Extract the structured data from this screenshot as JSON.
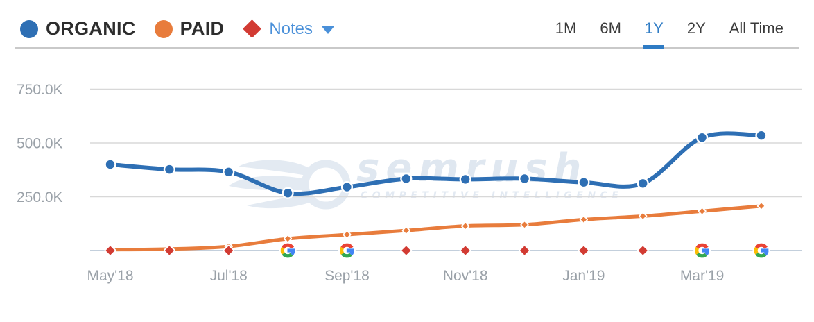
{
  "legend": {
    "organic_label": "ORGANIC",
    "paid_label": "PAID",
    "notes_label": "Notes",
    "organic_color": "#2e6fb4",
    "paid_color": "#e87c3c",
    "notes_color": "#d23b33",
    "notes_text_color": "#4a90d9"
  },
  "time_range_tabs": {
    "active_color": "#2e7bc4",
    "tabs": [
      {
        "label": "1M",
        "active": false
      },
      {
        "label": "6M",
        "active": false
      },
      {
        "label": "1Y",
        "active": true
      },
      {
        "label": "2Y",
        "active": false
      },
      {
        "label": "All Time",
        "active": false
      }
    ]
  },
  "watermark": {
    "title": "semrush",
    "subtitle": "COMPETITIVE INTELLIGENCE"
  },
  "chart_data": {
    "type": "line",
    "x": [
      "May'18",
      "Jun'18",
      "Jul'18",
      "Aug'18",
      "Sep'18",
      "Oct'18",
      "Nov'18",
      "Dec'18",
      "Jan'19",
      "Feb'19",
      "Mar'19",
      "Apr'19"
    ],
    "x_tick_labels": [
      "May'18",
      "Jul'18",
      "Sep'18",
      "Nov'18",
      "Jan'19",
      "Mar'19"
    ],
    "y_tick_labels": [
      "250.0K",
      "500.0K",
      "750.0K"
    ],
    "ylim": [
      0,
      800000
    ],
    "grid": "horizontal",
    "legend_position": "top-left",
    "series": [
      {
        "name": "ORGANIC",
        "color": "#2e6fb4",
        "marker": "circle",
        "values": [
          400000,
          377000,
          365000,
          267000,
          295000,
          334000,
          331000,
          334000,
          317000,
          312000,
          525000,
          535000
        ]
      },
      {
        "name": "PAID",
        "color": "#e87c3c",
        "marker": "diamond",
        "values": [
          4000,
          7000,
          19000,
          55000,
          74000,
          93000,
          114000,
          120000,
          144000,
          160000,
          183000,
          207000
        ]
      }
    ],
    "notes_markers": [
      {
        "month": "May'18",
        "type": "note"
      },
      {
        "month": "Jun'18",
        "type": "note"
      },
      {
        "month": "Jul'18",
        "type": "note"
      },
      {
        "month": "Aug'18",
        "type": "google"
      },
      {
        "month": "Sep'18",
        "type": "google"
      },
      {
        "month": "Oct'18",
        "type": "note"
      },
      {
        "month": "Nov'18",
        "type": "note"
      },
      {
        "month": "Dec'18",
        "type": "note"
      },
      {
        "month": "Jan'19",
        "type": "note"
      },
      {
        "month": "Feb'19",
        "type": "note"
      },
      {
        "month": "Mar'19",
        "type": "google"
      },
      {
        "month": "Apr'19",
        "type": "google"
      }
    ],
    "google_colors": {
      "red": "#EA4335",
      "yellow": "#FBBC05",
      "green": "#34A853",
      "blue": "#4285F4"
    }
  }
}
